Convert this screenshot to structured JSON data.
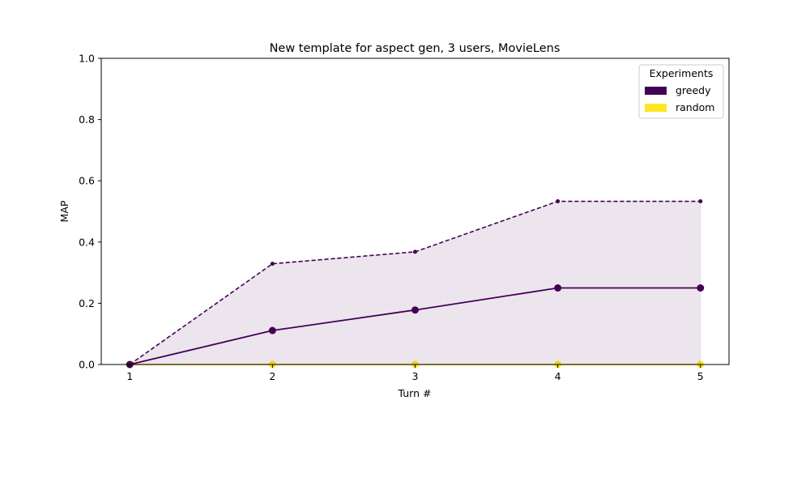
{
  "chart_data": {
    "type": "line",
    "title": "New template for aspect gen, 3 users, MovieLens",
    "xlabel": "Turn #",
    "ylabel": "MAP",
    "x": [
      1,
      2,
      3,
      4,
      5
    ],
    "xlim": [
      0.8,
      5.2
    ],
    "ylim": [
      0,
      1.0
    ],
    "xticks": [
      "1",
      "2",
      "3",
      "4",
      "5"
    ],
    "yticks": [
      "0.0",
      "0.2",
      "0.4",
      "0.6",
      "0.8",
      "1.0"
    ],
    "grid": false,
    "legend": {
      "title": "Experiments",
      "placement": "top-right",
      "entries": [
        "greedy",
        "random"
      ]
    },
    "series": [
      {
        "name": "greedy",
        "color": "#440154",
        "values": [
          0.0,
          0.111,
          0.178,
          0.25,
          0.25
        ],
        "upper": [
          0.0,
          0.329,
          0.368,
          0.533,
          0.533
        ],
        "lower": [
          0.0,
          0.0,
          0.0,
          0.0,
          0.0
        ]
      },
      {
        "name": "random",
        "color": "#fde725",
        "values": [
          0.0,
          0.0,
          0.0,
          0.0,
          0.0
        ],
        "upper": [
          0.0,
          0.0,
          0.0,
          0.0,
          0.0
        ],
        "lower": [
          0.0,
          0.0,
          0.0,
          0.0,
          0.0
        ]
      }
    ]
  }
}
